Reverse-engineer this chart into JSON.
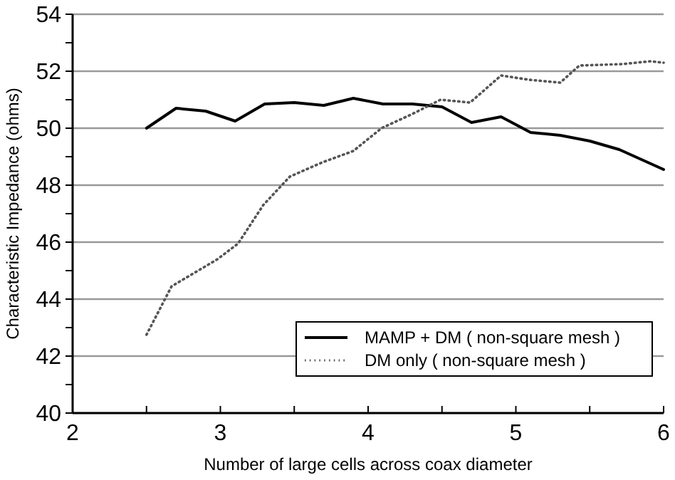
{
  "chart_data": {
    "type": "line",
    "xlabel": "Number of large cells across coax diameter",
    "ylabel": "Characteristic Impedance (ohms)",
    "xlim": [
      2,
      6
    ],
    "ylim": [
      40,
      54
    ],
    "xticks": [
      2,
      {
        "value": 2.5,
        "label": null
      },
      3,
      {
        "value": 3.5,
        "label": null
      },
      4,
      {
        "value": 4.5,
        "label": null
      },
      5,
      {
        "value": 5.5,
        "label": null
      },
      6
    ],
    "yticks": [
      40,
      {
        "value": 41,
        "label": null
      },
      42,
      {
        "value": 43,
        "label": null
      },
      44,
      {
        "value": 45,
        "label": null
      },
      46,
      {
        "value": 47,
        "label": null
      },
      48,
      {
        "value": 49,
        "label": null
      },
      50,
      {
        "value": 51,
        "label": null
      },
      52,
      {
        "value": 53,
        "label": null
      },
      54
    ],
    "grid": "y",
    "legend": "bottom right",
    "marker": "none",
    "series": [
      {
        "name": "MAMP + DM ( non-square mesh )",
        "color": "#000000",
        "line_style": "solid",
        "x": [
          2.5,
          2.7,
          2.9,
          3.1,
          3.3,
          3.5,
          3.7,
          3.9,
          4.1,
          4.3,
          4.5,
          4.7,
          4.9,
          5.1,
          5.3,
          5.5,
          5.7,
          6.0
        ],
        "values": [
          50.0,
          50.7,
          50.6,
          50.25,
          50.85,
          50.9,
          50.8,
          51.05,
          50.85,
          50.85,
          50.75,
          50.2,
          50.4,
          49.85,
          49.75,
          49.55,
          49.25,
          48.55
        ]
      },
      {
        "name": "DM only ( non-square mesh )",
        "color": "#555555",
        "line_style": "dotted",
        "x": [
          2.5,
          2.67,
          2.98,
          3.12,
          3.29,
          3.47,
          3.69,
          3.9,
          4.09,
          4.3,
          4.49,
          4.69,
          4.9,
          5.09,
          5.3,
          5.43,
          5.72,
          5.91,
          6.0
        ],
        "values": [
          42.75,
          44.45,
          45.4,
          45.95,
          47.3,
          48.3,
          48.8,
          49.2,
          50.0,
          50.5,
          51.0,
          50.9,
          51.85,
          51.7,
          51.6,
          52.2,
          52.25,
          52.35,
          52.3
        ]
      }
    ]
  }
}
